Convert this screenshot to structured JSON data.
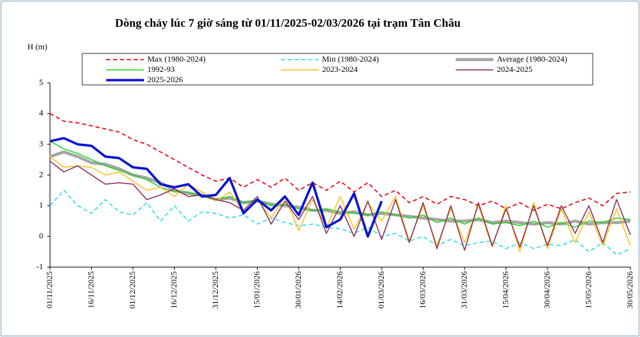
{
  "chart_data": {
    "type": "line",
    "title": "Dòng chảy lúc 7 giờ sáng từ 01/11/2025-02/03/2026 tại trạm Tân Châu",
    "y_label": "H (m)",
    "categories": [
      "01/11/2025",
      null,
      null,
      "16/11/2025",
      null,
      null,
      "01/12/2025",
      null,
      null,
      "16/12/2025",
      null,
      null,
      "31/12/2025",
      null,
      null,
      "15/01/2026",
      null,
      null,
      "30/01/2026",
      null,
      null,
      "14/02/2026",
      null,
      null,
      "01/03/2026",
      null,
      null,
      "16/03/2026",
      null,
      null,
      "31/03/2026",
      null,
      null,
      "15/04/2026",
      null,
      null,
      "30/04/2026",
      null,
      null,
      "15/05/2026",
      null,
      null,
      "30/05/2026"
    ],
    "ylim": [
      -1,
      5
    ],
    "yticks": [
      -1,
      0,
      1,
      2,
      3,
      4,
      5
    ],
    "grid": false,
    "series": [
      {
        "name": "Max (1980-2024)",
        "color": "#e8141b",
        "dashed": true,
        "width": 1.8,
        "values": [
          4.0,
          3.75,
          3.7,
          3.6,
          3.5,
          3.4,
          3.15,
          3.0,
          2.75,
          2.5,
          2.25,
          2.0,
          1.8,
          1.9,
          1.6,
          1.85,
          1.6,
          1.9,
          1.5,
          1.75,
          1.5,
          1.8,
          1.45,
          1.75,
          1.3,
          1.5,
          1.1,
          1.3,
          1.05,
          1.3,
          1.2,
          1.0,
          1.15,
          0.9,
          1.1,
          0.85,
          1.05,
          0.9,
          1.1,
          1.25,
          1.0,
          1.4,
          1.45
        ]
      },
      {
        "name": "Min (1980-2024)",
        "color": "#1fd9f0",
        "dashed": true,
        "width": 1.5,
        "values": [
          1.0,
          1.5,
          1.0,
          0.75,
          1.2,
          0.8,
          0.7,
          1.1,
          0.5,
          1.0,
          0.5,
          0.8,
          0.75,
          0.6,
          0.7,
          0.4,
          0.6,
          0.45,
          0.35,
          0.4,
          0.3,
          0.25,
          0.1,
          0.3,
          0.0,
          0.1,
          -0.15,
          0.0,
          -0.3,
          -0.1,
          -0.3,
          -0.2,
          -0.15,
          -0.4,
          -0.2,
          -0.4,
          -0.25,
          -0.3,
          -0.1,
          -0.5,
          -0.2,
          -0.6,
          -0.4
        ]
      },
      {
        "name": "Average (1980-2024)",
        "color": "#a6a6a6",
        "dashed": false,
        "width": 4.5,
        "values": [
          2.6,
          2.75,
          2.6,
          2.4,
          2.35,
          2.2,
          2.0,
          1.9,
          1.75,
          1.5,
          1.4,
          1.35,
          1.2,
          1.25,
          1.1,
          1.15,
          1.05,
          1.0,
          0.95,
          0.85,
          0.85,
          0.75,
          0.8,
          0.7,
          0.75,
          0.7,
          0.65,
          0.6,
          0.55,
          0.5,
          0.5,
          0.55,
          0.45,
          0.5,
          0.45,
          0.4,
          0.45,
          0.4,
          0.5,
          0.4,
          0.45,
          0.45,
          0.5
        ]
      },
      {
        "name": "1992-93",
        "color": "#1ed21e",
        "dashed": false,
        "width": 1.5,
        "values": [
          3.1,
          2.85,
          2.7,
          2.5,
          2.3,
          2.15,
          2.0,
          1.85,
          1.6,
          1.45,
          1.45,
          1.3,
          1.2,
          1.3,
          1.1,
          1.2,
          1.0,
          1.05,
          0.9,
          0.85,
          0.9,
          0.8,
          0.75,
          0.7,
          0.8,
          0.7,
          0.6,
          0.7,
          0.45,
          0.6,
          0.4,
          0.6,
          0.4,
          0.45,
          0.35,
          0.5,
          0.3,
          0.45,
          0.3,
          0.5,
          0.45,
          0.6,
          0.55
        ]
      },
      {
        "name": "2023-2024",
        "color": "#ffbf1f",
        "dashed": false,
        "width": 1.5,
        "values": [
          2.6,
          2.25,
          2.3,
          2.25,
          2.0,
          2.1,
          1.8,
          1.5,
          1.6,
          1.3,
          1.7,
          1.45,
          1.15,
          1.45,
          0.8,
          1.2,
          0.6,
          1.3,
          0.2,
          1.2,
          0.3,
          1.3,
          0.25,
          1.1,
          0.5,
          1.3,
          -0.15,
          1.0,
          -0.3,
          0.9,
          -0.2,
          1.0,
          -0.35,
          1.0,
          -0.5,
          1.1,
          -0.4,
          0.9,
          -0.2,
          0.8,
          -0.3,
          0.9,
          -0.3
        ]
      },
      {
        "name": "2024-2025",
        "color": "#8e2b5a",
        "dashed": false,
        "width": 1.5,
        "values": [
          2.45,
          2.1,
          2.3,
          2.0,
          1.7,
          1.75,
          1.7,
          1.2,
          1.35,
          1.55,
          1.3,
          1.35,
          1.2,
          1.1,
          0.85,
          1.3,
          0.4,
          1.15,
          0.55,
          1.3,
          0.1,
          1.0,
          0.0,
          1.15,
          -0.1,
          1.2,
          -0.2,
          1.1,
          -0.4,
          1.0,
          -0.45,
          1.1,
          -0.3,
          0.9,
          -0.35,
          1.0,
          -0.3,
          1.0,
          0.1,
          1.0,
          -0.2,
          1.2,
          0.05
        ]
      },
      {
        "name": "2025-2026",
        "color": "#0a14d2",
        "dashed": false,
        "width": 3.5,
        "values": [
          3.1,
          3.2,
          3.0,
          2.95,
          2.6,
          2.55,
          2.25,
          2.2,
          1.7,
          1.6,
          1.7,
          1.3,
          1.35,
          1.9,
          0.75,
          1.2,
          0.85,
          1.3,
          0.7,
          1.75,
          0.3,
          0.55,
          1.4,
          0.0,
          1.15,
          null,
          null,
          null,
          null,
          null,
          null,
          null,
          null,
          null,
          null,
          null,
          null,
          null,
          null,
          null,
          null,
          null,
          null
        ]
      }
    ]
  }
}
